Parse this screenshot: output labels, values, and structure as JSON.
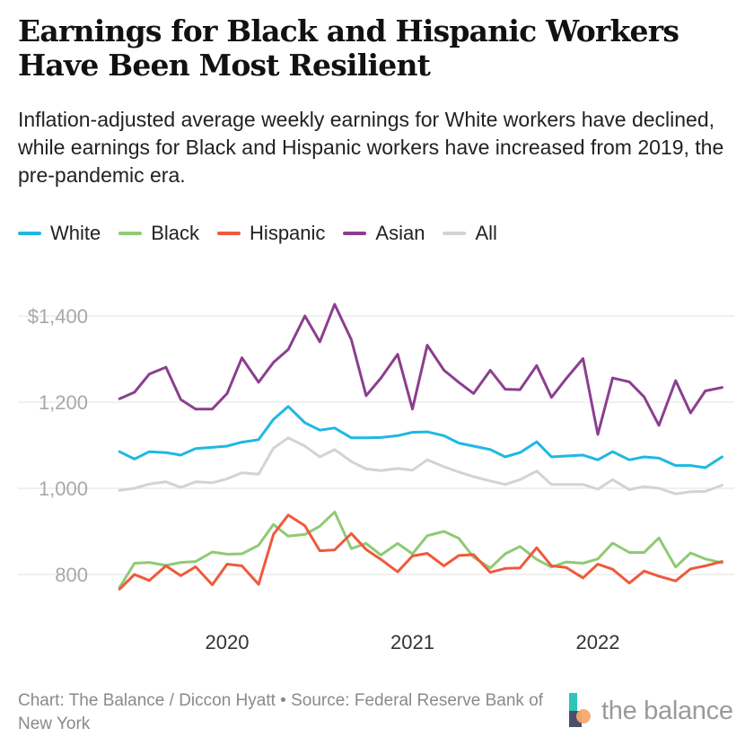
{
  "title": "Earnings for Black and Hispanic Workers Have Been Most Resilient",
  "subtitle": "Inflation-adjusted average weekly earnings for White workers have declined, while earnings for Black and Hispanic workers have increased from 2019, the pre-pandemic era.",
  "footer": "Chart: The Balance / Diccon Hyatt • Source: Federal Reserve Bank of New York",
  "logo_text": "the balance",
  "chart_data": {
    "type": "line",
    "ylim": [
      700,
      1470
    ],
    "yticks": [
      800,
      1000,
      1200,
      1400
    ],
    "ytick_labels": [
      "800",
      "1,000",
      "1,200",
      "$1,400"
    ],
    "xlim": [
      2019.4,
      2022.75
    ],
    "xticks": [
      2020,
      2021,
      2022
    ],
    "xtick_labels": [
      "2020",
      "2021",
      "2022"
    ],
    "grid": true,
    "legend_position": "top-left",
    "series": [
      {
        "name": "White",
        "color": "#1fb8e3",
        "x": [
          2019.42,
          2019.5,
          2019.58,
          2019.67,
          2019.75,
          2019.83,
          2019.92,
          2020.0,
          2020.08,
          2020.17,
          2020.25,
          2020.33,
          2020.42,
          2020.5,
          2020.58,
          2020.67,
          2020.75,
          2020.83,
          2020.92,
          2021.0,
          2021.08,
          2021.17,
          2021.25,
          2021.33,
          2021.42,
          2021.5,
          2021.58,
          2021.67,
          2021.75,
          2021.83,
          2021.92,
          2022.0,
          2022.08,
          2022.17,
          2022.25,
          2022.33,
          2022.42,
          2022.5,
          2022.58,
          2022.67
        ],
        "values": [
          1085,
          1068,
          1085,
          1083,
          1077,
          1092,
          1095,
          1098,
          1107,
          1113,
          1160,
          1190,
          1152,
          1135,
          1140,
          1117,
          1117,
          1118,
          1122,
          1130,
          1131,
          1122,
          1105,
          1098,
          1090,
          1073,
          1083,
          1108,
          1073,
          1075,
          1077,
          1066,
          1085,
          1066,
          1073,
          1070,
          1053,
          1053,
          1048,
          1073
        ]
      },
      {
        "name": "Black",
        "color": "#8fca74",
        "x": [
          2019.42,
          2019.5,
          2019.58,
          2019.67,
          2019.75,
          2019.83,
          2019.92,
          2020.0,
          2020.08,
          2020.17,
          2020.25,
          2020.33,
          2020.42,
          2020.5,
          2020.58,
          2020.67,
          2020.75,
          2020.83,
          2020.92,
          2021.0,
          2021.08,
          2021.17,
          2021.25,
          2021.33,
          2021.42,
          2021.5,
          2021.58,
          2021.67,
          2021.75,
          2021.83,
          2021.92,
          2022.0,
          2022.08,
          2022.17,
          2022.25,
          2022.33,
          2022.42,
          2022.5,
          2022.58,
          2022.67
        ],
        "values": [
          770,
          826,
          828,
          821,
          828,
          830,
          852,
          847,
          848,
          868,
          916,
          889,
          893,
          912,
          945,
          860,
          872,
          845,
          872,
          848,
          890,
          900,
          884,
          840,
          815,
          848,
          865,
          835,
          817,
          829,
          826,
          836,
          873,
          851,
          851,
          885,
          817,
          850,
          836,
          827
        ]
      },
      {
        "name": "Hispanic",
        "color": "#ee5a3c",
        "x": [
          2019.42,
          2019.5,
          2019.58,
          2019.67,
          2019.75,
          2019.83,
          2019.92,
          2020.0,
          2020.08,
          2020.17,
          2020.25,
          2020.33,
          2020.42,
          2020.5,
          2020.58,
          2020.67,
          2020.75,
          2020.83,
          2020.92,
          2021.0,
          2021.08,
          2021.17,
          2021.25,
          2021.33,
          2021.42,
          2021.5,
          2021.58,
          2021.67,
          2021.75,
          2021.83,
          2021.92,
          2022.0,
          2022.08,
          2022.17,
          2022.25,
          2022.33,
          2022.42,
          2022.5,
          2022.58,
          2022.67
        ],
        "values": [
          766,
          800,
          786,
          820,
          797,
          818,
          776,
          824,
          820,
          777,
          893,
          938,
          913,
          855,
          857,
          895,
          858,
          835,
          806,
          843,
          849,
          820,
          844,
          846,
          805,
          814,
          815,
          862,
          820,
          816,
          792,
          824,
          812,
          780,
          808,
          796,
          785,
          813,
          820,
          830
        ]
      },
      {
        "name": "Asian",
        "color": "#8b3f8f",
        "x": [
          2019.42,
          2019.5,
          2019.58,
          2019.67,
          2019.75,
          2019.83,
          2019.92,
          2020.0,
          2020.08,
          2020.17,
          2020.25,
          2020.33,
          2020.42,
          2020.5,
          2020.58,
          2020.67,
          2020.75,
          2020.83,
          2020.92,
          2021.0,
          2021.08,
          2021.17,
          2021.25,
          2021.33,
          2021.42,
          2021.5,
          2021.58,
          2021.67,
          2021.75,
          2021.83,
          2021.92,
          2022.0,
          2022.08,
          2022.17,
          2022.25,
          2022.33,
          2022.42,
          2022.5,
          2022.58,
          2022.67
        ],
        "values": [
          1208,
          1223,
          1265,
          1281,
          1206,
          1184,
          1184,
          1220,
          1303,
          1246,
          1292,
          1322,
          1400,
          1340,
          1427,
          1345,
          1215,
          1256,
          1311,
          1184,
          1332,
          1274,
          1246,
          1220,
          1274,
          1230,
          1229,
          1285,
          1211,
          1255,
          1301,
          1125,
          1256,
          1247,
          1212,
          1146,
          1250,
          1175,
          1226,
          1234
        ]
      },
      {
        "name": "All",
        "color": "#d3d3d3",
        "x": [
          2019.42,
          2019.5,
          2019.58,
          2019.67,
          2019.75,
          2019.83,
          2019.92,
          2020.0,
          2020.08,
          2020.17,
          2020.25,
          2020.33,
          2020.42,
          2020.5,
          2020.58,
          2020.67,
          2020.75,
          2020.83,
          2020.92,
          2021.0,
          2021.08,
          2021.17,
          2021.25,
          2021.33,
          2021.42,
          2021.5,
          2021.58,
          2021.67,
          2021.75,
          2021.83,
          2021.92,
          2022.0,
          2022.08,
          2022.17,
          2022.25,
          2022.33,
          2022.42,
          2022.5,
          2022.58,
          2022.67
        ],
        "values": [
          995,
          1000,
          1010,
          1015,
          1002,
          1015,
          1013,
          1022,
          1036,
          1033,
          1093,
          1117,
          1098,
          1073,
          1090,
          1062,
          1045,
          1041,
          1046,
          1042,
          1066,
          1050,
          1038,
          1027,
          1017,
          1009,
          1020,
          1040,
          1009,
          1009,
          1009,
          998,
          1020,
          997,
          1004,
          1000,
          987,
          992,
          993,
          1007
        ]
      }
    ]
  }
}
